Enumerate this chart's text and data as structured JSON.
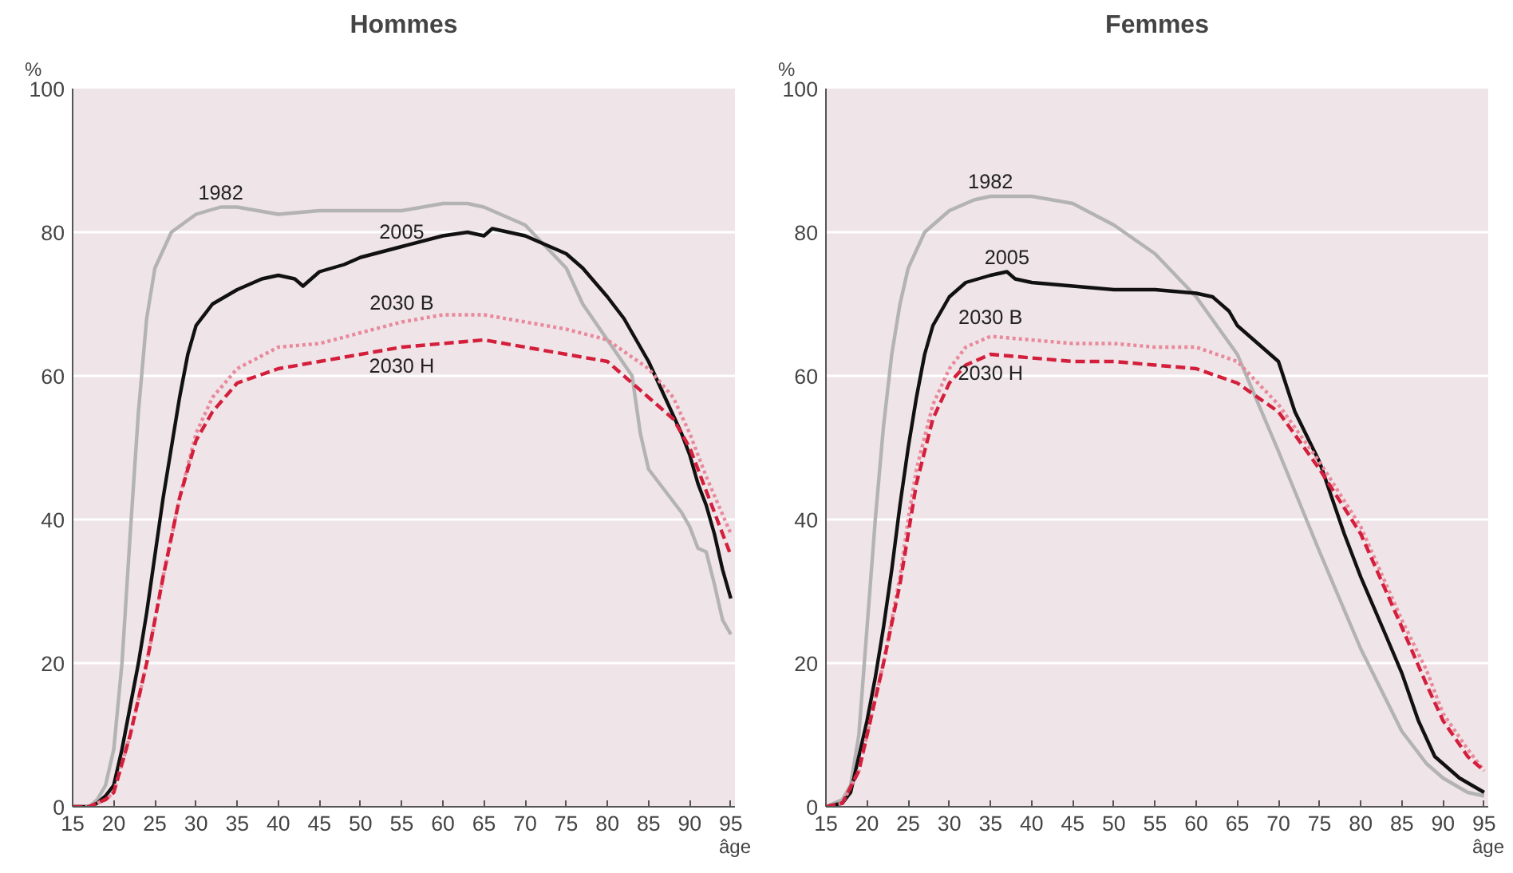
{
  "chart_data": [
    {
      "type": "line",
      "title": "Hommes",
      "xlabel": "âge",
      "ylabel": "%",
      "xlim": [
        15,
        95.5
      ],
      "ylim": [
        0,
        100
      ],
      "xticks": [
        15,
        20,
        25,
        30,
        35,
        40,
        45,
        50,
        55,
        60,
        65,
        70,
        75,
        80,
        85,
        90,
        95
      ],
      "yticks": [
        0,
        20,
        40,
        60,
        80,
        100
      ],
      "grid": "y",
      "series": [
        {
          "name": "1982",
          "color": "#b3b3b3",
          "line_style": "solid",
          "x": [
            15,
            17,
            18,
            19,
            20,
            21,
            22,
            23,
            24,
            25,
            27,
            30,
            33,
            35,
            40,
            45,
            50,
            55,
            60,
            63,
            65,
            70,
            75,
            77,
            80,
            83,
            84,
            85,
            87,
            89,
            90,
            91,
            92,
            93,
            94,
            95
          ],
          "values": [
            0,
            0,
            1,
            3,
            8,
            20,
            38,
            55,
            68,
            75,
            80,
            82.5,
            83.5,
            83.5,
            82.5,
            83,
            83,
            83,
            84,
            84,
            83.5,
            81,
            75,
            70,
            65,
            60,
            52,
            47,
            44,
            41,
            39,
            36,
            35.5,
            31,
            26,
            24
          ]
        },
        {
          "name": "2005",
          "color": "#111111",
          "line_style": "solid",
          "x": [
            15,
            17,
            18,
            19,
            20,
            21,
            22,
            23,
            24,
            25,
            26,
            27,
            28,
            29,
            30,
            32,
            35,
            38,
            40,
            42,
            43,
            45,
            48,
            50,
            55,
            60,
            63,
            65,
            66,
            68,
            70,
            72,
            75,
            77,
            80,
            82,
            85,
            87,
            89,
            90,
            91,
            92,
            93,
            94,
            95
          ],
          "values": [
            0,
            0,
            0.5,
            1.5,
            3,
            8,
            14,
            20,
            27,
            35,
            43,
            50,
            57,
            63,
            67,
            70,
            72,
            73.5,
            74,
            73.5,
            72.5,
            74.5,
            75.5,
            76.5,
            78,
            79.5,
            80,
            79.5,
            80.5,
            80,
            79.5,
            78.5,
            77,
            75,
            71,
            68,
            62,
            57,
            52,
            49,
            45,
            42,
            38,
            33,
            29
          ]
        },
        {
          "name": "2030 B",
          "color": "#e8899c",
          "line_style": "dotted",
          "x": [
            15,
            17,
            18,
            19,
            20,
            22,
            24,
            26,
            28,
            30,
            32,
            35,
            40,
            45,
            50,
            55,
            60,
            65,
            70,
            75,
            80,
            85,
            88,
            90,
            92,
            95
          ],
          "values": [
            0,
            0,
            0.5,
            1,
            2,
            10,
            20,
            32,
            43,
            52,
            57,
            61,
            64,
            64.5,
            66,
            67.5,
            68.5,
            68.5,
            67.5,
            66.5,
            65,
            61,
            57,
            52,
            46,
            38
          ]
        },
        {
          "name": "2030 H",
          "color": "#d41f3c",
          "line_style": "dashed",
          "x": [
            15,
            17,
            18,
            19,
            20,
            22,
            24,
            26,
            28,
            30,
            32,
            35,
            40,
            45,
            50,
            55,
            60,
            65,
            70,
            75,
            80,
            85,
            88,
            90,
            92,
            95
          ],
          "values": [
            0,
            0,
            0.5,
            1,
            2,
            10,
            20,
            32,
            43,
            51,
            55,
            59,
            61,
            62,
            63,
            64,
            64.5,
            65,
            64,
            63,
            62,
            57,
            54,
            50,
            44,
            35
          ]
        }
      ]
    },
    {
      "type": "line",
      "title": "Femmes",
      "xlabel": "âge",
      "ylabel": "%",
      "xlim": [
        15,
        95.5
      ],
      "ylim": [
        0,
        100
      ],
      "xticks": [
        15,
        20,
        25,
        30,
        35,
        40,
        45,
        50,
        55,
        60,
        65,
        70,
        75,
        80,
        85,
        90,
        95
      ],
      "yticks": [
        0,
        20,
        40,
        60,
        80,
        100
      ],
      "grid": "y",
      "series": [
        {
          "name": "1982",
          "color": "#b3b3b3",
          "line_style": "solid",
          "x": [
            15,
            17,
            18,
            19,
            20,
            21,
            22,
            23,
            24,
            25,
            27,
            30,
            33,
            35,
            40,
            45,
            50,
            55,
            60,
            65,
            70,
            75,
            80,
            85,
            88,
            90,
            93,
            95
          ],
          "values": [
            0,
            1,
            3,
            10,
            25,
            40,
            53,
            63,
            70,
            75,
            80,
            83,
            84.5,
            85,
            85,
            84,
            81,
            77,
            71,
            63,
            49.5,
            35.5,
            22,
            10.5,
            6,
            4,
            2,
            1.5
          ]
        },
        {
          "name": "2005",
          "color": "#111111",
          "line_style": "solid",
          "x": [
            15,
            17,
            18,
            19,
            20,
            21,
            22,
            23,
            24,
            25,
            26,
            27,
            28,
            30,
            32,
            35,
            37,
            38,
            40,
            45,
            50,
            55,
            60,
            62,
            64,
            65,
            67,
            68,
            70,
            72,
            75,
            78,
            80,
            83,
            85,
            87,
            89,
            90,
            92,
            95
          ],
          "values": [
            0,
            0.5,
            2,
            7,
            12,
            18,
            25,
            33,
            42,
            50,
            57,
            63,
            67,
            71,
            73,
            74,
            74.5,
            73.5,
            73,
            72.5,
            72,
            72,
            71.5,
            71,
            69,
            67,
            65,
            64,
            62,
            55,
            48,
            38,
            32,
            24,
            18.6,
            12,
            7,
            6,
            4,
            2
          ]
        },
        {
          "name": "2030 B",
          "color": "#e8899c",
          "line_style": "dotted",
          "x": [
            15,
            17,
            19,
            20,
            22,
            24,
            25,
            26,
            28,
            30,
            32,
            35,
            40,
            45,
            50,
            55,
            60,
            65,
            70,
            75,
            80,
            85,
            88,
            90,
            93,
            95
          ],
          "values": [
            0,
            0.5,
            5,
            10,
            20,
            32,
            40,
            47,
            56,
            61,
            64,
            65.5,
            65,
            64.5,
            64.5,
            64,
            64,
            62,
            56,
            48,
            39,
            26,
            19,
            13,
            8,
            5
          ]
        },
        {
          "name": "2030 H",
          "color": "#d41f3c",
          "line_style": "dashed",
          "x": [
            15,
            17,
            19,
            20,
            22,
            24,
            25,
            26,
            28,
            30,
            32,
            35,
            40,
            45,
            50,
            55,
            60,
            65,
            70,
            75,
            80,
            85,
            88,
            90,
            93,
            95
          ],
          "values": [
            0,
            0.5,
            5,
            10,
            20,
            31,
            38,
            45,
            54,
            59,
            61.5,
            63,
            62.5,
            62,
            62,
            61.5,
            61,
            59,
            55,
            47,
            38,
            25,
            17,
            12,
            7,
            5
          ]
        }
      ]
    }
  ]
}
